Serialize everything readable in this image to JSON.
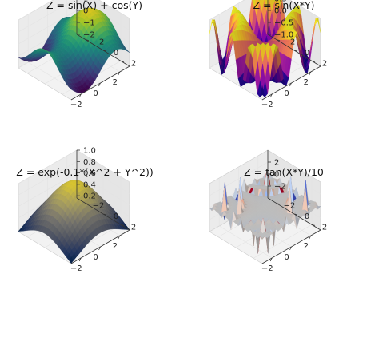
{
  "chart_data": [
    {
      "type": "surface",
      "title": "Z = sin(X) + cos(Y)",
      "formula": "sin_plus_cos",
      "colormap": "viridis",
      "xlim": [
        -3,
        3
      ],
      "ylim": [
        -3,
        3
      ],
      "zlim": [
        -2,
        2
      ],
      "xticks": [
        -2,
        0,
        2
      ],
      "yticks": [
        -2,
        0,
        2
      ],
      "zticks": [
        -2,
        -1,
        0,
        1,
        2
      ],
      "xtick_labels": [
        "−2",
        "0",
        "2"
      ],
      "ytick_labels": [
        "−2",
        "0",
        "2"
      ],
      "ztick_labels": [
        "−2",
        "−1",
        "0",
        "1",
        "2"
      ],
      "grid": true
    },
    {
      "type": "surface",
      "title": "Z = sin(X*Y)",
      "formula": "sin_xy",
      "colormap": "plasma",
      "xlim": [
        -3,
        3
      ],
      "ylim": [
        -3,
        3
      ],
      "zlim": [
        -1,
        1
      ],
      "xticks": [
        -2,
        0,
        2
      ],
      "yticks": [
        -2,
        0,
        2
      ],
      "zticks": [
        -1,
        -0.5,
        0,
        0.5,
        1
      ],
      "xtick_labels": [
        "−2",
        "0",
        "2"
      ],
      "ytick_labels": [
        "−2",
        "0",
        "2"
      ],
      "ztick_labels": [
        "−1.0",
        "−0.5",
        "0.0",
        "0.5",
        "1.0"
      ],
      "grid": true
    },
    {
      "type": "surface",
      "title": "Z = exp(-0.1*(X^2 + Y^2))",
      "formula": "gaussian",
      "colormap": "cividis",
      "xlim": [
        -3,
        3
      ],
      "ylim": [
        -3,
        3
      ],
      "zlim": [
        0.16,
        1.0
      ],
      "xticks": [
        -2,
        0,
        2
      ],
      "yticks": [
        -2,
        0,
        2
      ],
      "zticks": [
        0.2,
        0.4,
        0.6,
        0.8,
        1.0
      ],
      "xtick_labels": [
        "−2",
        "0",
        "2"
      ],
      "ytick_labels": [
        "−2",
        "0",
        "2"
      ],
      "ztick_labels": [
        "0.2",
        "0.4",
        "0.6",
        "0.8",
        "1.0"
      ],
      "grid": true
    },
    {
      "type": "surface",
      "title": "Z = tan(X*Y)/10",
      "formula": "tan_xy",
      "colormap": "coolwarm",
      "xlim": [
        -3,
        3
      ],
      "ylim": [
        -3,
        3
      ],
      "zlim": [
        -4,
        4
      ],
      "xticks": [
        -2,
        0,
        2
      ],
      "yticks": [
        -2,
        0,
        2
      ],
      "zticks": [
        -2,
        0,
        2
      ],
      "xtick_labels": [
        "−2",
        "0",
        "2"
      ],
      "ytick_labels": [
        "−2",
        "0",
        "2"
      ],
      "ztick_labels": [
        "−2",
        "0",
        "2"
      ],
      "grid": true
    }
  ]
}
